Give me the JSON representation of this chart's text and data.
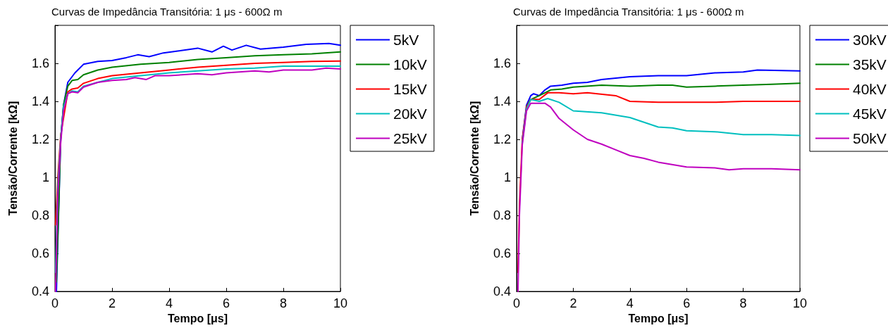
{
  "chart_data": [
    {
      "type": "line",
      "title": "Curvas de Impedância Transitória: 1 μs - 600Ω m",
      "xlabel": "Tempo [μs]",
      "ylabel": "Tensão/Corrente [kΩ]",
      "xlim": [
        0,
        10
      ],
      "xticks": [
        0,
        2,
        4,
        6,
        8,
        10
      ],
      "ylim": [
        0.4,
        1.8
      ],
      "yticks": [
        0.4,
        0.6,
        0.8,
        1,
        1.2,
        1.4,
        1.6,
        {
          "value": 1.8,
          "label": null
        }
      ],
      "grid": false,
      "legend": "top right",
      "marker": "none",
      "line_style": "solid",
      "series": [
        {
          "name": "5kV",
          "color": "#0000ff",
          "x": [
            0.05,
            0.2,
            0.3,
            0.45,
            0.7,
            1,
            1.5,
            2,
            2.5,
            2.9,
            3.3,
            3.8,
            4.3,
            5,
            5.5,
            5.9,
            6.2,
            6.7,
            7.2,
            8,
            8.8,
            9.6,
            10
          ],
          "values": [
            0.4,
            1.2,
            1.38,
            1.5,
            1.55,
            1.595,
            1.61,
            1.615,
            1.63,
            1.645,
            1.635,
            1.655,
            1.665,
            1.68,
            1.66,
            1.69,
            1.67,
            1.695,
            1.675,
            1.685,
            1.7,
            1.705,
            1.695
          ]
        },
        {
          "name": "10kV",
          "color": "#008000",
          "x": [
            0.05,
            0.2,
            0.3,
            0.45,
            0.6,
            0.8,
            1,
            1.5,
            2,
            3,
            4,
            5,
            6,
            7,
            8,
            9,
            10
          ],
          "values": [
            0.45,
            1.2,
            1.38,
            1.48,
            1.51,
            1.515,
            1.54,
            1.565,
            1.58,
            1.595,
            1.605,
            1.62,
            1.63,
            1.64,
            1.645,
            1.65,
            1.66
          ]
        },
        {
          "name": "15kV",
          "color": "#ff0000",
          "x": [
            0.02,
            0.1,
            0.2,
            0.45,
            0.6,
            0.8,
            1,
            1.5,
            2,
            3,
            4,
            5,
            6,
            7,
            8,
            9,
            10
          ],
          "values": [
            0.75,
            1.0,
            1.22,
            1.45,
            1.465,
            1.47,
            1.495,
            1.52,
            1.535,
            1.55,
            1.565,
            1.58,
            1.59,
            1.6,
            1.605,
            1.61,
            1.612
          ]
        },
        {
          "name": "20kV",
          "color": "#00bfbf",
          "x": [
            0.02,
            0.1,
            0.2,
            0.3,
            0.45,
            0.6,
            0.8,
            1,
            1.5,
            2,
            3,
            4,
            5,
            6,
            7,
            8,
            10
          ],
          "values": [
            0.5,
            0.95,
            1.2,
            1.37,
            1.44,
            1.455,
            1.45,
            1.48,
            1.5,
            1.52,
            1.535,
            1.55,
            1.56,
            1.57,
            1.575,
            1.585,
            1.585
          ]
        },
        {
          "name": "25kV",
          "color": "#bf00bf",
          "x": [
            0.02,
            0.1,
            0.2,
            0.3,
            0.45,
            0.6,
            0.8,
            1,
            1.5,
            2,
            2.5,
            2.8,
            3.2,
            3.5,
            4,
            5,
            5.5,
            6,
            7,
            7.5,
            8,
            9,
            9.5,
            10
          ],
          "values": [
            0.4,
            0.9,
            1.18,
            1.35,
            1.44,
            1.45,
            1.445,
            1.475,
            1.5,
            1.51,
            1.515,
            1.525,
            1.515,
            1.535,
            1.535,
            1.545,
            1.54,
            1.55,
            1.56,
            1.555,
            1.565,
            1.565,
            1.575,
            1.57
          ]
        }
      ]
    },
    {
      "type": "line",
      "title": "Curvas de Impedância Transitória: 1 μs - 600Ω m",
      "xlabel": "Tempo [μs]",
      "ylabel": "Tensão/Corrente [kΩ]",
      "xlim": [
        0,
        10
      ],
      "xticks": [
        0,
        2,
        4,
        6,
        8,
        10
      ],
      "ylim": [
        0.4,
        1.8
      ],
      "yticks": [
        0.4,
        0.6,
        0.8,
        1,
        1.2,
        1.4,
        1.6,
        {
          "value": 1.8,
          "label": null
        }
      ],
      "grid": false,
      "legend": "top right",
      "marker": "none",
      "line_style": "solid",
      "series": [
        {
          "name": "30kV",
          "color": "#0000ff",
          "x": [
            0.2,
            0.35,
            0.5,
            0.6,
            0.8,
            1,
            1.2,
            1.6,
            2,
            2.5,
            3,
            4,
            5,
            6,
            7,
            8,
            8.5,
            10
          ],
          "values": [
            1.2,
            1.38,
            1.43,
            1.44,
            1.43,
            1.46,
            1.48,
            1.485,
            1.495,
            1.5,
            1.515,
            1.53,
            1.535,
            1.535,
            1.55,
            1.555,
            1.565,
            1.56
          ]
        },
        {
          "name": "35kV",
          "color": "#008000",
          "x": [
            0.35,
            0.5,
            0.8,
            1.2,
            1.6,
            2,
            3,
            4,
            5,
            5.5,
            6,
            7,
            8,
            9,
            10
          ],
          "values": [
            1.37,
            1.41,
            1.43,
            1.46,
            1.465,
            1.475,
            1.485,
            1.48,
            1.485,
            1.485,
            1.475,
            1.48,
            1.485,
            1.49,
            1.495
          ]
        },
        {
          "name": "40kV",
          "color": "#ff0000",
          "x": [
            0.05,
            0.1,
            0.2,
            0.35,
            0.5,
            0.8,
            1.1,
            1.5,
            2,
            2.5,
            3.5,
            4,
            5,
            6,
            7,
            8,
            10
          ],
          "values": [
            0.5,
            0.85,
            1.2,
            1.37,
            1.41,
            1.41,
            1.445,
            1.445,
            1.44,
            1.445,
            1.43,
            1.4,
            1.395,
            1.395,
            1.395,
            1.4,
            1.4
          ]
        },
        {
          "name": "45kV",
          "color": "#00bfbf",
          "x": [
            0.2,
            0.35,
            0.5,
            0.8,
            1.1,
            1.5,
            2,
            3,
            4,
            4.5,
            5,
            5.5,
            6,
            7,
            8,
            9,
            10
          ],
          "values": [
            1.18,
            1.36,
            1.41,
            1.4,
            1.415,
            1.395,
            1.35,
            1.34,
            1.315,
            1.29,
            1.265,
            1.26,
            1.245,
            1.24,
            1.225,
            1.225,
            1.22
          ]
        },
        {
          "name": "50kV",
          "color": "#bf00bf",
          "x": [
            0.05,
            0.1,
            0.2,
            0.35,
            0.5,
            0.7,
            1,
            1.2,
            1.5,
            2,
            2.5,
            3,
            3.5,
            4,
            4.5,
            5,
            6,
            7,
            7.5,
            8,
            9,
            10
          ],
          "values": [
            0.4,
            0.8,
            1.17,
            1.35,
            1.39,
            1.39,
            1.39,
            1.37,
            1.31,
            1.25,
            1.2,
            1.175,
            1.145,
            1.115,
            1.1,
            1.08,
            1.055,
            1.05,
            1.04,
            1.045,
            1.045,
            1.04
          ]
        }
      ]
    }
  ]
}
